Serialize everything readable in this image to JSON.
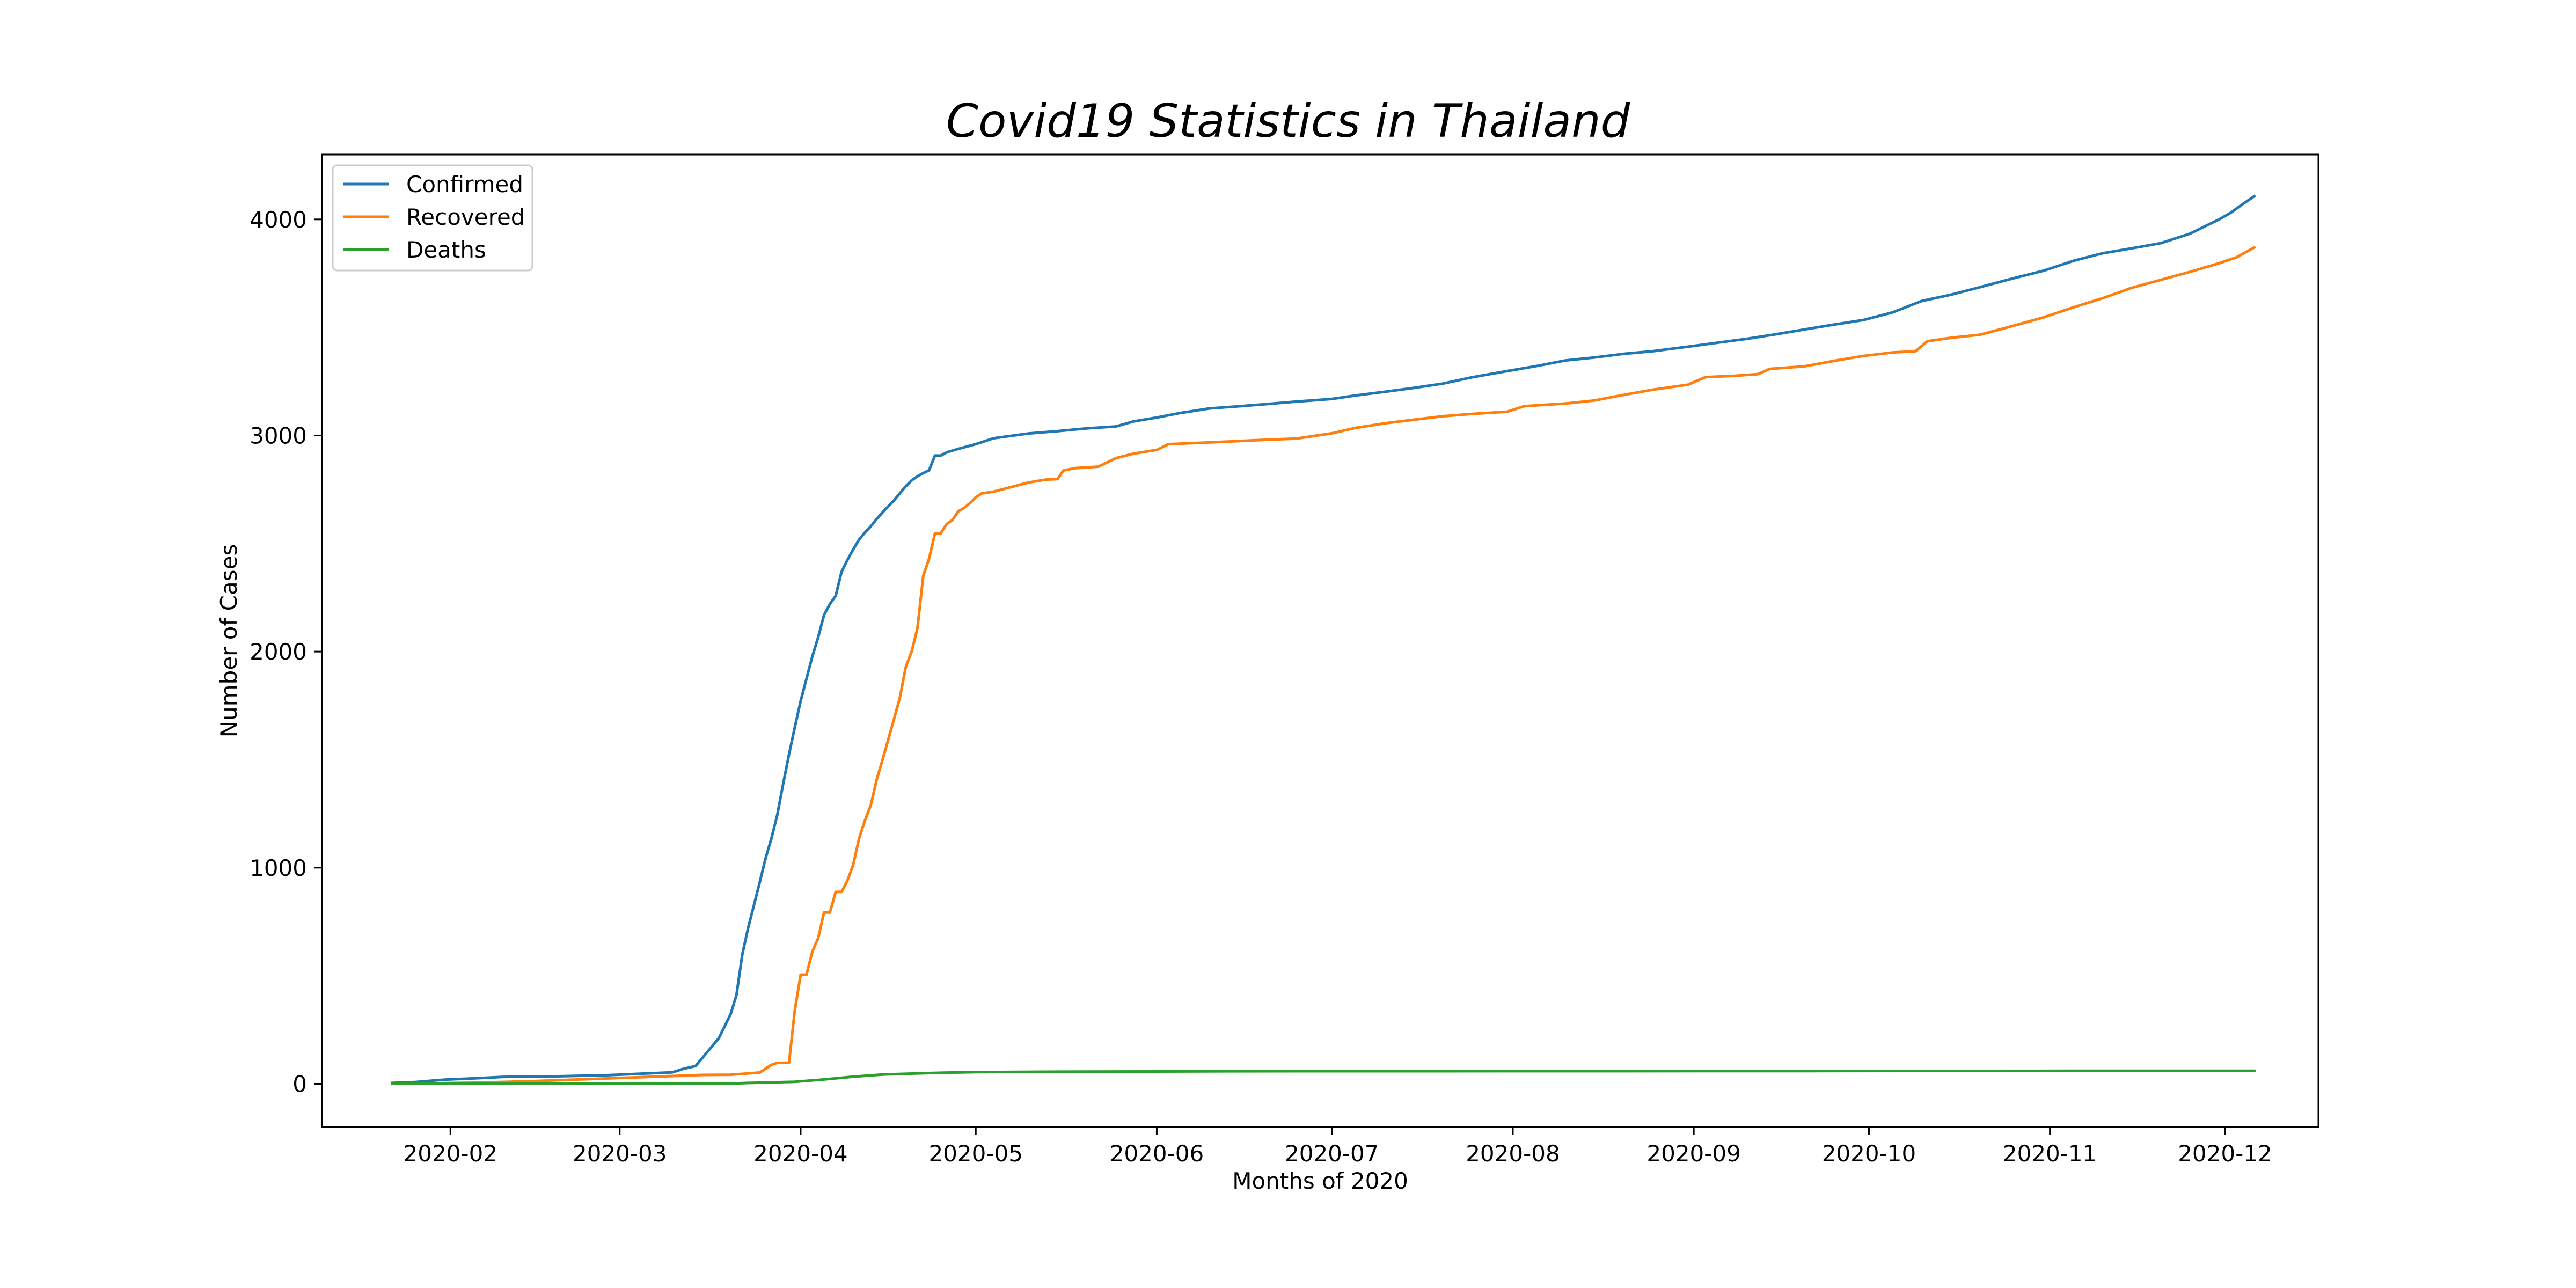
{
  "chart_data": {
    "type": "line",
    "title": "Covid19 Statistics in Thailand",
    "xlabel": "Months of 2020",
    "ylabel": "Number of Cases",
    "xlim": [
      "2020-01-10",
      "2020-12-17"
    ],
    "ylim": [
      -200,
      4300
    ],
    "grid": false,
    "legend": "top-left",
    "xticks": [
      "2020-02",
      "2020-03",
      "2020-04",
      "2020-05",
      "2020-06",
      "2020-07",
      "2020-08",
      "2020-09",
      "2020-10",
      "2020-11",
      "2020-12"
    ],
    "yticks": [
      0,
      1000,
      2000,
      3000,
      4000
    ],
    "series": [
      {
        "name": "Confirmed",
        "color": "#1f77b4",
        "points": [
          [
            "2020-01-22",
            4
          ],
          [
            "2020-01-26",
            8
          ],
          [
            "2020-01-31",
            19
          ],
          [
            "2020-02-05",
            25
          ],
          [
            "2020-02-10",
            32
          ],
          [
            "2020-02-20",
            35
          ],
          [
            "2020-02-28",
            40
          ],
          [
            "2020-03-05",
            47
          ],
          [
            "2020-03-10",
            53
          ],
          [
            "2020-03-12",
            70
          ],
          [
            "2020-03-14",
            82
          ],
          [
            "2020-03-16",
            147
          ],
          [
            "2020-03-18",
            212
          ],
          [
            "2020-03-20",
            322
          ],
          [
            "2020-03-21",
            411
          ],
          [
            "2020-03-22",
            599
          ],
          [
            "2020-03-23",
            721
          ],
          [
            "2020-03-24",
            827
          ],
          [
            "2020-03-25",
            934
          ],
          [
            "2020-03-26",
            1045
          ],
          [
            "2020-03-27",
            1136
          ],
          [
            "2020-03-28",
            1245
          ],
          [
            "2020-03-29",
            1388
          ],
          [
            "2020-03-30",
            1524
          ],
          [
            "2020-03-31",
            1651
          ],
          [
            "2020-04-01",
            1771
          ],
          [
            "2020-04-02",
            1875
          ],
          [
            "2020-04-03",
            1978
          ],
          [
            "2020-04-04",
            2067
          ],
          [
            "2020-04-05",
            2169
          ],
          [
            "2020-04-06",
            2220
          ],
          [
            "2020-04-07",
            2258
          ],
          [
            "2020-04-08",
            2369
          ],
          [
            "2020-04-09",
            2423
          ],
          [
            "2020-04-10",
            2473
          ],
          [
            "2020-04-11",
            2518
          ],
          [
            "2020-04-12",
            2551
          ],
          [
            "2020-04-13",
            2579
          ],
          [
            "2020-04-14",
            2613
          ],
          [
            "2020-04-15",
            2643
          ],
          [
            "2020-04-16",
            2672
          ],
          [
            "2020-04-17",
            2700
          ],
          [
            "2020-04-18",
            2733
          ],
          [
            "2020-04-19",
            2765
          ],
          [
            "2020-04-20",
            2792
          ],
          [
            "2020-04-21",
            2811
          ],
          [
            "2020-04-22",
            2826
          ],
          [
            "2020-04-23",
            2839
          ],
          [
            "2020-04-24",
            2907
          ],
          [
            "2020-04-25",
            2907
          ],
          [
            "2020-04-26",
            2922
          ],
          [
            "2020-04-28",
            2938
          ],
          [
            "2020-05-01",
            2960
          ],
          [
            "2020-05-04",
            2987
          ],
          [
            "2020-05-10",
            3009
          ],
          [
            "2020-05-15",
            3020
          ],
          [
            "2020-05-20",
            3033
          ],
          [
            "2020-05-25",
            3042
          ],
          [
            "2020-05-28",
            3065
          ],
          [
            "2020-06-01",
            3083
          ],
          [
            "2020-06-05",
            3104
          ],
          [
            "2020-06-10",
            3125
          ],
          [
            "2020-06-15",
            3135
          ],
          [
            "2020-06-20",
            3146
          ],
          [
            "2020-06-25",
            3157
          ],
          [
            "2020-07-01",
            3169
          ],
          [
            "2020-07-05",
            3185
          ],
          [
            "2020-07-10",
            3202
          ],
          [
            "2020-07-15",
            3220
          ],
          [
            "2020-07-20",
            3240
          ],
          [
            "2020-07-25",
            3269
          ],
          [
            "2020-07-31",
            3298
          ],
          [
            "2020-08-05",
            3321
          ],
          [
            "2020-08-10",
            3347
          ],
          [
            "2020-08-15",
            3361
          ],
          [
            "2020-08-20",
            3378
          ],
          [
            "2020-08-25",
            3390
          ],
          [
            "2020-08-31",
            3411
          ],
          [
            "2020-09-05",
            3429
          ],
          [
            "2020-09-10",
            3447
          ],
          [
            "2020-09-15",
            3468
          ],
          [
            "2020-09-20",
            3491
          ],
          [
            "2020-09-25",
            3513
          ],
          [
            "2020-09-30",
            3534
          ],
          [
            "2020-10-05",
            3569
          ],
          [
            "2020-10-10",
            3622
          ],
          [
            "2020-10-15",
            3651
          ],
          [
            "2020-10-20",
            3686
          ],
          [
            "2020-10-25",
            3722
          ],
          [
            "2020-10-31",
            3763
          ],
          [
            "2020-11-05",
            3808
          ],
          [
            "2020-11-10",
            3843
          ],
          [
            "2020-11-15",
            3866
          ],
          [
            "2020-11-20",
            3890
          ],
          [
            "2020-11-25",
            3934
          ],
          [
            "2020-11-30",
            4000
          ],
          [
            "2020-12-02",
            4031
          ],
          [
            "2020-12-04",
            4070
          ],
          [
            "2020-12-06",
            4107
          ]
        ]
      },
      {
        "name": "Recovered",
        "color": "#ff7f0e",
        "points": [
          [
            "2020-01-22",
            0
          ],
          [
            "2020-02-05",
            5
          ],
          [
            "2020-02-15",
            12
          ],
          [
            "2020-02-25",
            22
          ],
          [
            "2020-03-05",
            31
          ],
          [
            "2020-03-15",
            41
          ],
          [
            "2020-03-20",
            42
          ],
          [
            "2020-03-25",
            52
          ],
          [
            "2020-03-27",
            88
          ],
          [
            "2020-03-28",
            97
          ],
          [
            "2020-03-30",
            97
          ],
          [
            "2020-03-31",
            342
          ],
          [
            "2020-04-01",
            505
          ],
          [
            "2020-04-02",
            505
          ],
          [
            "2020-04-03",
            612
          ],
          [
            "2020-04-04",
            674
          ],
          [
            "2020-04-05",
            793
          ],
          [
            "2020-04-06",
            793
          ],
          [
            "2020-04-07",
            888
          ],
          [
            "2020-04-08",
            888
          ],
          [
            "2020-04-09",
            940
          ],
          [
            "2020-04-10",
            1013
          ],
          [
            "2020-04-11",
            1135
          ],
          [
            "2020-04-12",
            1218
          ],
          [
            "2020-04-13",
            1288
          ],
          [
            "2020-04-14",
            1405
          ],
          [
            "2020-04-15",
            1497
          ],
          [
            "2020-04-16",
            1593
          ],
          [
            "2020-04-17",
            1689
          ],
          [
            "2020-04-18",
            1787
          ],
          [
            "2020-04-19",
            1928
          ],
          [
            "2020-04-20",
            1999
          ],
          [
            "2020-04-21",
            2108
          ],
          [
            "2020-04-22",
            2352
          ],
          [
            "2020-04-23",
            2430
          ],
          [
            "2020-04-24",
            2547
          ],
          [
            "2020-04-25",
            2547
          ],
          [
            "2020-04-26",
            2590
          ],
          [
            "2020-04-27",
            2609
          ],
          [
            "2020-04-28",
            2649
          ],
          [
            "2020-04-29",
            2665
          ],
          [
            "2020-04-30",
            2687
          ],
          [
            "2020-05-01",
            2714
          ],
          [
            "2020-05-02",
            2732
          ],
          [
            "2020-05-04",
            2740
          ],
          [
            "2020-05-07",
            2761
          ],
          [
            "2020-05-10",
            2782
          ],
          [
            "2020-05-13",
            2796
          ],
          [
            "2020-05-15",
            2798
          ],
          [
            "2020-05-16",
            2838
          ],
          [
            "2020-05-18",
            2849
          ],
          [
            "2020-05-22",
            2856
          ],
          [
            "2020-05-25",
            2895
          ],
          [
            "2020-05-28",
            2916
          ],
          [
            "2020-06-01",
            2933
          ],
          [
            "2020-06-03",
            2960
          ],
          [
            "2020-06-10",
            2968
          ],
          [
            "2020-06-18",
            2978
          ],
          [
            "2020-06-25",
            2986
          ],
          [
            "2020-07-01",
            3010
          ],
          [
            "2020-07-05",
            3035
          ],
          [
            "2020-07-10",
            3056
          ],
          [
            "2020-07-15",
            3073
          ],
          [
            "2020-07-20",
            3089
          ],
          [
            "2020-07-25",
            3100
          ],
          [
            "2020-07-31",
            3110
          ],
          [
            "2020-08-03",
            3136
          ],
          [
            "2020-08-10",
            3148
          ],
          [
            "2020-08-15",
            3162
          ],
          [
            "2020-08-20",
            3188
          ],
          [
            "2020-08-25",
            3212
          ],
          [
            "2020-08-31",
            3235
          ],
          [
            "2020-09-03",
            3270
          ],
          [
            "2020-09-08",
            3276
          ],
          [
            "2020-09-12",
            3284
          ],
          [
            "2020-09-14",
            3308
          ],
          [
            "2020-09-20",
            3320
          ],
          [
            "2020-09-25",
            3345
          ],
          [
            "2020-09-30",
            3368
          ],
          [
            "2020-10-05",
            3384
          ],
          [
            "2020-10-09",
            3390
          ],
          [
            "2020-10-11",
            3436
          ],
          [
            "2020-10-15",
            3452
          ],
          [
            "2020-10-20",
            3466
          ],
          [
            "2020-10-25",
            3502
          ],
          [
            "2020-10-31",
            3547
          ],
          [
            "2020-11-05",
            3593
          ],
          [
            "2020-11-10",
            3635
          ],
          [
            "2020-11-15",
            3683
          ],
          [
            "2020-11-20",
            3720
          ],
          [
            "2020-11-25",
            3757
          ],
          [
            "2020-11-30",
            3797
          ],
          [
            "2020-12-03",
            3825
          ],
          [
            "2020-12-06",
            3870
          ]
        ]
      },
      {
        "name": "Deaths",
        "color": "#2ca02c",
        "points": [
          [
            "2020-01-22",
            0
          ],
          [
            "2020-03-01",
            1
          ],
          [
            "2020-03-20",
            1
          ],
          [
            "2020-03-23",
            4
          ],
          [
            "2020-03-31",
            9
          ],
          [
            "2020-04-05",
            20
          ],
          [
            "2020-04-10",
            33
          ],
          [
            "2020-04-15",
            43
          ],
          [
            "2020-04-20",
            47
          ],
          [
            "2020-04-25",
            51
          ],
          [
            "2020-05-01",
            54
          ],
          [
            "2020-05-15",
            56
          ],
          [
            "2020-06-01",
            57
          ],
          [
            "2020-06-15",
            58
          ],
          [
            "2020-09-20",
            59
          ],
          [
            "2020-11-05",
            60
          ],
          [
            "2020-12-06",
            60
          ]
        ]
      }
    ]
  }
}
